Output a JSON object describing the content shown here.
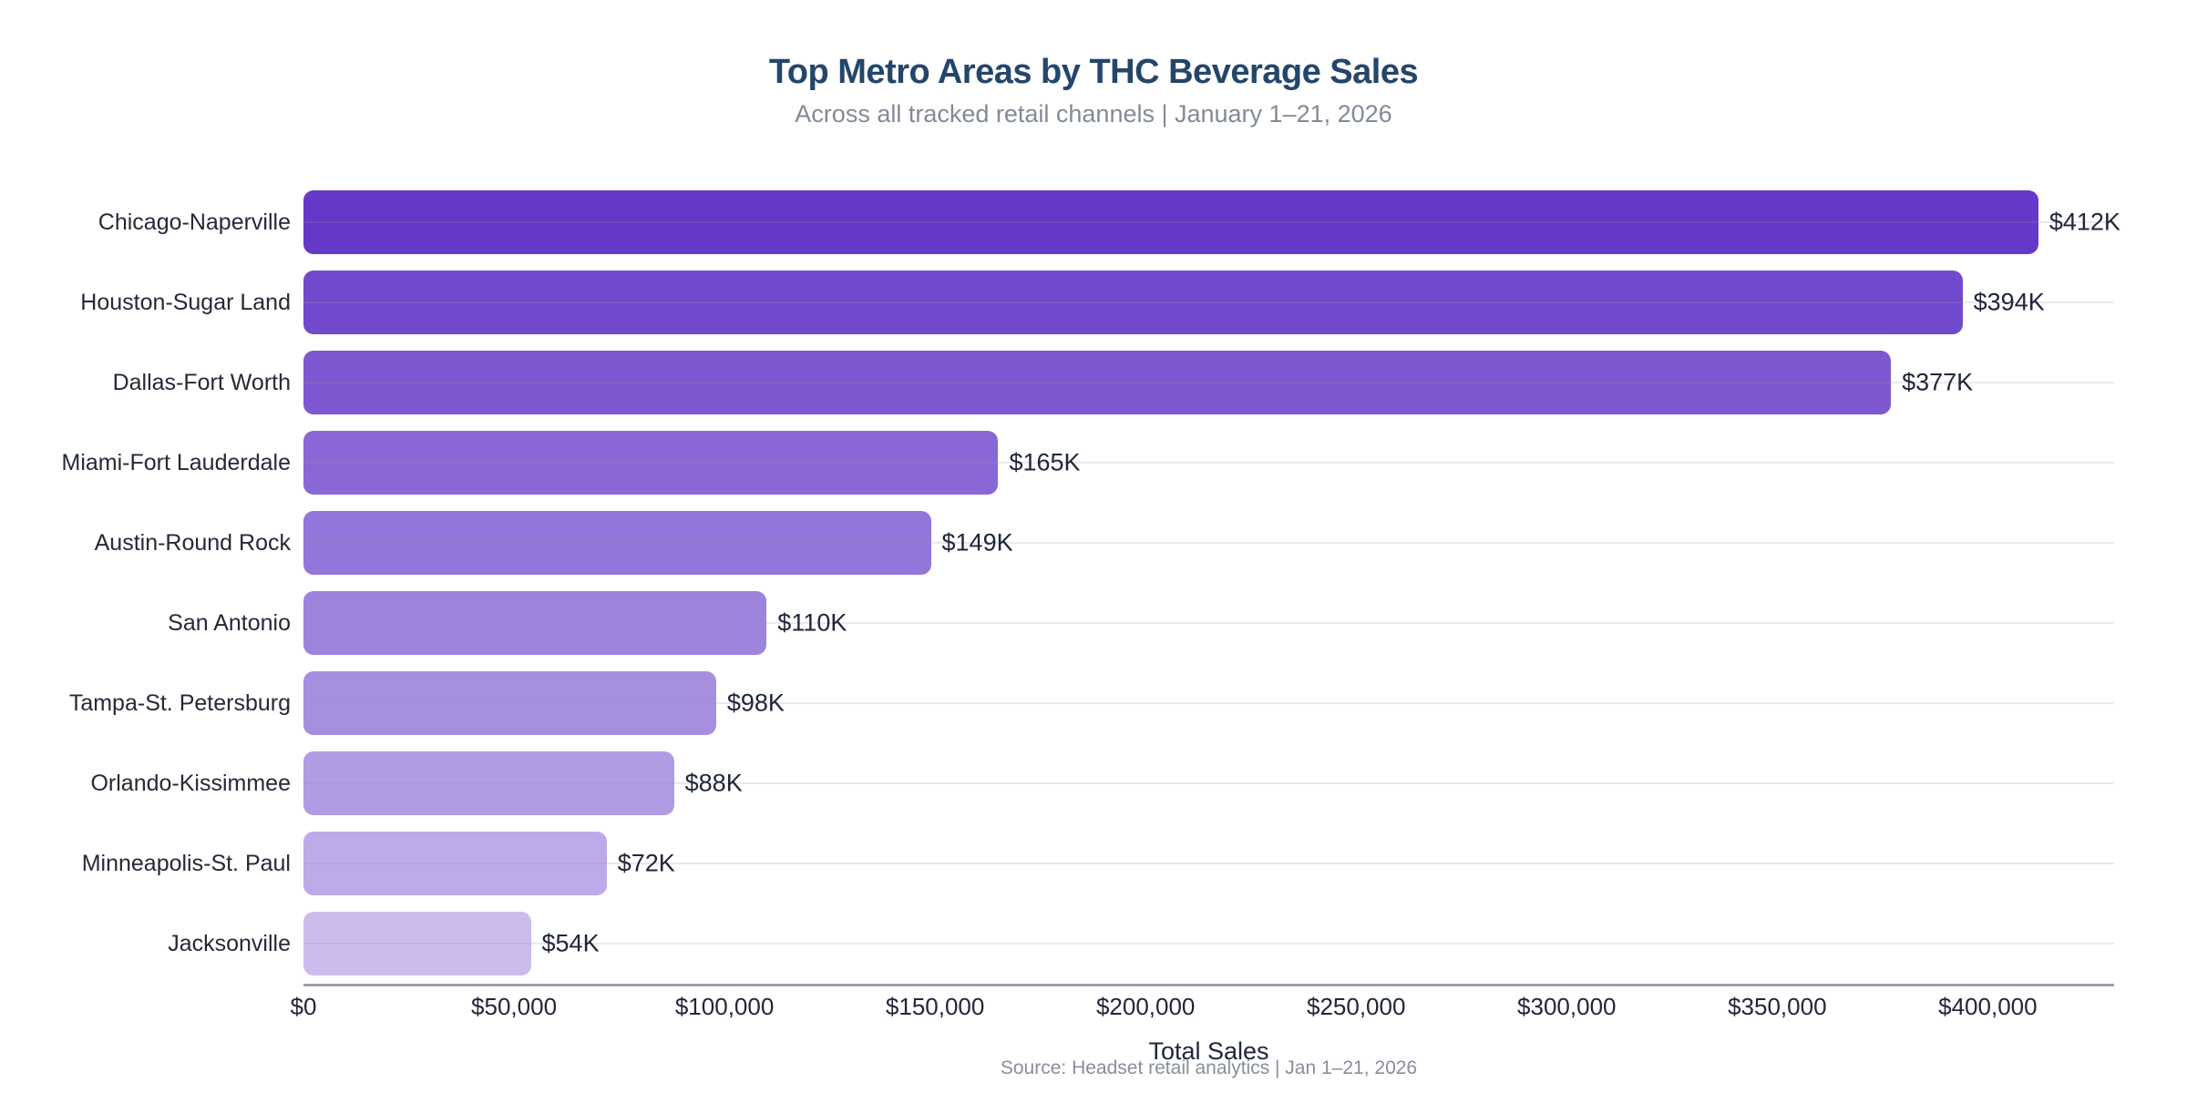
{
  "header": {
    "title": "Top Metro Areas by THC Beverage Sales",
    "subtitle": "Across all tracked retail channels | January 1–21, 2026"
  },
  "footer": {
    "xlabel": "Total Sales",
    "source": "Source: Headset retail analytics | Jan 1–21, 2026"
  },
  "chart_data": {
    "type": "bar",
    "orientation": "horizontal",
    "title": "Top Metro Areas by THC Beverage Sales",
    "subtitle": "Across all tracked retail channels | January 1–21, 2026",
    "xlabel": "Total Sales",
    "ylabel": "",
    "categories": [
      "Chicago-Naperville",
      "Houston-Sugar Land",
      "Dallas-Fort Worth",
      "Miami-Fort Lauderdale",
      "Austin-Round Rock",
      "San Antonio",
      "Tampa-St. Petersburg",
      "Orlando-Kissimmee",
      "Minneapolis-St. Paul",
      "Jacksonville"
    ],
    "values": [
      412000,
      394000,
      377000,
      165000,
      149000,
      110000,
      98000,
      88000,
      72000,
      54000
    ],
    "value_labels": [
      "$412K",
      "$394K",
      "$377K",
      "$165K",
      "$149K",
      "$110K",
      "$98K",
      "$88K",
      "$72K",
      "$54K"
    ],
    "bar_colors": [
      "#6539C8",
      "#7149CC",
      "#7D58D1",
      "#8967D5",
      "#9376D9",
      "#9D83DC",
      "#A78FE0",
      "#B09CE3",
      "#BCABE8",
      "#CBBCED"
    ],
    "xlim": [
      0,
      430000
    ],
    "xticks": [
      0,
      50000,
      100000,
      150000,
      200000,
      250000,
      300000,
      350000,
      400000
    ],
    "xtick_labels": [
      "$0",
      "$50,000",
      "$100,000",
      "$150,000",
      "$200,000",
      "$250,000",
      "$300,000",
      "$350,000",
      "$400,000"
    ],
    "grid": "horizontal gridline per category row, light gray, drawn across plot area",
    "legend": "none",
    "source": "Source: Headset retail analytics | Jan 1–21, 2026"
  },
  "colors": {
    "background": "#FFFFFF",
    "title": "#24466B",
    "subtitle": "#828A97",
    "category_label": "#242A36",
    "value_label": "#20263A",
    "tick_label": "#212737",
    "axis_line": "#99A1AB",
    "gridline": "#EDEEF1",
    "source": "#878E9B"
  }
}
